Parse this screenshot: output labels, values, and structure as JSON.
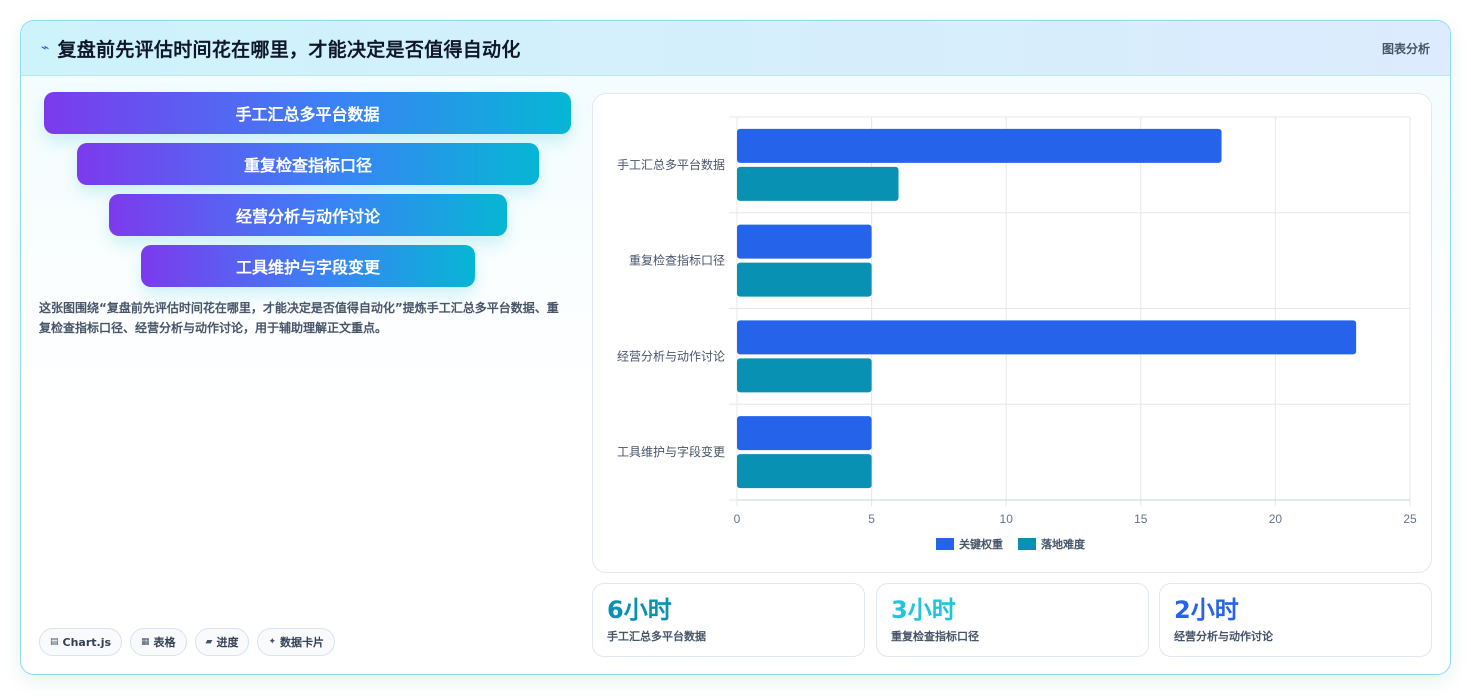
{
  "header": {
    "title": "复盘前先评估时间花在哪里，才能决定是否值得自动化",
    "tag": "图表分析"
  },
  "funnel": {
    "items": [
      "手工汇总多平台数据",
      "重复检查指标口径",
      "经营分析与动作讨论",
      "工具维护与字段变更"
    ]
  },
  "description": "这张图围绕“复盘前先评估时间花在哪里，才能决定是否值得自动化”提炼手工汇总多平台数据、重复检查指标口径、经营分析与动作讨论，用于辅助理解正文重点。",
  "chips": [
    {
      "icon": "chart-icon",
      "label": "Chart.js"
    },
    {
      "icon": "table-icon",
      "label": "表格"
    },
    {
      "icon": "progress-icon",
      "label": "进度"
    },
    {
      "icon": "sparkle-icon",
      "label": "数据卡片"
    }
  ],
  "stats": [
    {
      "value": "6小时",
      "label": "手工汇总多平台数据",
      "color": "#0891b2"
    },
    {
      "value": "3小时",
      "label": "重复检查指标口径",
      "color": "#22c3dd"
    },
    {
      "value": "2小时",
      "label": "经营分析与动作讨论",
      "color": "#2563eb"
    }
  ],
  "chart_data": {
    "type": "bar",
    "orientation": "horizontal",
    "categories": [
      "手工汇总多平台数据",
      "重复检查指标口径",
      "经营分析与动作讨论",
      "工具维护与字段变更"
    ],
    "series": [
      {
        "name": "关键权重",
        "values": [
          18,
          5,
          23,
          5
        ],
        "color": "#2563eb"
      },
      {
        "name": "落地难度",
        "values": [
          6,
          5,
          5,
          5
        ],
        "color": "#0891b2"
      }
    ],
    "xlim": [
      0,
      25
    ],
    "xticks": [
      0,
      5,
      10,
      15,
      20,
      25
    ],
    "grid": true,
    "legend_position": "bottom"
  }
}
